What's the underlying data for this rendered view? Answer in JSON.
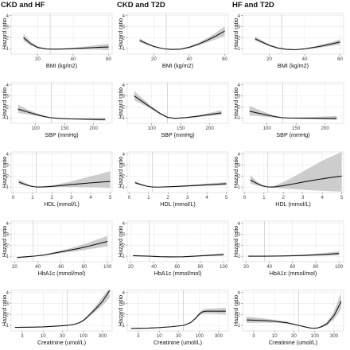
{
  "chart_data": {
    "type": "line",
    "column_titles": [
      "CKD and HF",
      "CKD and T2D",
      "HF and T2D"
    ],
    "ylabel": "Hazard ratio",
    "band_color": "#c4c4c4",
    "line_color": "#111111",
    "rows": [
      {
        "xlabel": "BMI (kg/m2)",
        "xlim": [
          5,
          62
        ],
        "xticks": [
          20,
          40,
          60
        ],
        "xtick_labels": [
          "20",
          "40",
          "60"
        ],
        "log_x": false,
        "ylim": [
          0.5,
          4.2
        ],
        "yticks": [
          1,
          2,
          3,
          4
        ],
        "panels": [
          {
            "ref": 27,
            "x": [
              12,
              16,
              20,
              25,
              30,
              35,
              40,
              45,
              50,
              55,
              60
            ],
            "y": [
              2.0,
              1.45,
              1.1,
              0.97,
              0.95,
              0.97,
              1.0,
              1.04,
              1.08,
              1.12,
              1.15
            ],
            "lower": [
              1.7,
              1.3,
              1.02,
              0.94,
              0.92,
              0.93,
              0.93,
              0.93,
              0.92,
              0.9,
              0.85
            ],
            "upper": [
              2.35,
              1.65,
              1.18,
              1.0,
              0.98,
              1.01,
              1.07,
              1.15,
              1.25,
              1.35,
              1.45
            ]
          },
          {
            "ref": 27,
            "x": [
              12,
              16,
              20,
              25,
              30,
              35,
              40,
              45,
              50,
              55,
              60
            ],
            "y": [
              1.75,
              1.45,
              1.2,
              1.0,
              0.92,
              0.95,
              1.12,
              1.4,
              1.75,
              2.15,
              2.6
            ],
            "lower": [
              1.6,
              1.35,
              1.13,
              0.97,
              0.89,
              0.91,
              1.05,
              1.28,
              1.55,
              1.85,
              2.15
            ],
            "upper": [
              1.92,
              1.56,
              1.27,
              1.03,
              0.95,
              0.99,
              1.2,
              1.53,
              1.95,
              2.45,
              3.05
            ]
          },
          {
            "ref": 27,
            "x": [
              12,
              16,
              20,
              25,
              30,
              35,
              40,
              45,
              50,
              55,
              60
            ],
            "y": [
              1.9,
              1.6,
              1.3,
              1.05,
              0.93,
              0.9,
              0.98,
              1.1,
              1.25,
              1.42,
              1.6
            ],
            "lower": [
              1.7,
              1.47,
              1.22,
              1.0,
              0.9,
              0.87,
              0.93,
              1.02,
              1.12,
              1.24,
              1.35
            ],
            "upper": [
              2.12,
              1.74,
              1.38,
              1.1,
              0.96,
              0.93,
              1.03,
              1.18,
              1.38,
              1.6,
              1.85
            ]
          }
        ]
      },
      {
        "xlabel": "SBP (mmHg)",
        "xlim": [
          58,
          232
        ],
        "xticks": [
          100,
          150,
          200
        ],
        "xtick_labels": [
          "100",
          "150",
          "200"
        ],
        "log_x": false,
        "ylim": [
          0.5,
          4.2
        ],
        "yticks": [
          1,
          2,
          3,
          4
        ],
        "panels": [
          {
            "ref": 127,
            "x": [
              70,
              85,
              100,
              115,
              127,
              140,
              160,
              180,
              200,
              220
            ],
            "y": [
              1.8,
              1.55,
              1.32,
              1.12,
              1.0,
              0.95,
              0.9,
              0.88,
              0.86,
              0.85
            ],
            "lower": [
              1.45,
              1.32,
              1.18,
              1.05,
              0.98,
              0.92,
              0.86,
              0.81,
              0.77,
              0.74
            ],
            "upper": [
              2.2,
              1.8,
              1.47,
              1.19,
              1.02,
              0.98,
              0.95,
              0.95,
              0.96,
              0.98
            ]
          },
          {
            "ref": 127,
            "x": [
              70,
              85,
              100,
              115,
              127,
              140,
              160,
              180,
              200,
              220
            ],
            "y": [
              3.0,
              2.45,
              1.9,
              1.38,
              1.05,
              0.95,
              1.02,
              1.15,
              1.3,
              1.45
            ],
            "lower": [
              2.6,
              2.2,
              1.75,
              1.3,
              1.02,
              0.92,
              0.97,
              1.07,
              1.17,
              1.25
            ],
            "upper": [
              3.45,
              2.72,
              2.06,
              1.47,
              1.08,
              0.98,
              1.07,
              1.23,
              1.45,
              1.7
            ]
          },
          {
            "ref": 127,
            "x": [
              70,
              85,
              100,
              115,
              127,
              140,
              160,
              180,
              200,
              220
            ],
            "y": [
              1.6,
              1.42,
              1.25,
              1.1,
              1.0,
              0.98,
              0.97,
              0.97,
              0.96,
              0.96
            ],
            "lower": [
              1.2,
              1.15,
              1.08,
              1.02,
              0.98,
              0.95,
              0.91,
              0.87,
              0.83,
              0.78
            ],
            "upper": [
              2.1,
              1.75,
              1.44,
              1.18,
              1.02,
              1.01,
              1.04,
              1.08,
              1.12,
              1.17
            ]
          }
        ]
      },
      {
        "xlabel": "HDL (mmol/L)",
        "xlim": [
          -0.1,
          5.1
        ],
        "xticks": [
          0,
          1,
          2,
          3,
          4,
          5
        ],
        "xtick_labels": [
          "0",
          "1",
          "2",
          "3",
          "4",
          "5"
        ],
        "log_x": false,
        "ylim": [
          0.5,
          4.2
        ],
        "yticks": [
          1,
          2,
          3,
          4
        ],
        "panels": [
          {
            "ref": 1.2,
            "x": [
              0.3,
              0.6,
              0.9,
              1.2,
              1.5,
              2.0,
              2.5,
              3.0,
              3.5,
              4.0,
              4.5,
              5.0
            ],
            "y": [
              1.45,
              1.25,
              1.08,
              1.0,
              1.0,
              1.06,
              1.14,
              1.22,
              1.3,
              1.38,
              1.45,
              1.5
            ],
            "lower": [
              1.25,
              1.12,
              1.02,
              0.98,
              0.96,
              0.98,
              0.99,
              0.99,
              0.98,
              0.97,
              0.95,
              0.92
            ],
            "upper": [
              1.7,
              1.4,
              1.15,
              1.02,
              1.05,
              1.15,
              1.32,
              1.52,
              1.75,
              1.98,
              2.2,
              2.45
            ]
          },
          {
            "ref": 1.2,
            "x": [
              0.3,
              0.6,
              0.9,
              1.2,
              1.5,
              2.0,
              2.5,
              3.0,
              3.5,
              4.0,
              4.5,
              5.0
            ],
            "y": [
              1.4,
              1.22,
              1.08,
              1.0,
              0.99,
              1.02,
              1.06,
              1.1,
              1.15,
              1.2,
              1.25,
              1.3
            ],
            "lower": [
              1.28,
              1.15,
              1.04,
              0.98,
              0.97,
              0.99,
              1.01,
              1.04,
              1.07,
              1.1,
              1.13,
              1.15
            ],
            "upper": [
              1.54,
              1.3,
              1.12,
              1.02,
              1.01,
              1.05,
              1.11,
              1.17,
              1.24,
              1.31,
              1.38,
              1.45
            ]
          },
          {
            "ref": 1.2,
            "x": [
              0.3,
              0.6,
              0.9,
              1.2,
              1.5,
              2.0,
              2.5,
              3.0,
              3.5,
              4.0,
              4.5,
              5.0
            ],
            "y": [
              1.65,
              1.35,
              1.12,
              1.0,
              1.0,
              1.12,
              1.28,
              1.45,
              1.6,
              1.75,
              1.88,
              2.0
            ],
            "lower": [
              1.3,
              1.15,
              1.04,
              0.98,
              0.92,
              0.85,
              0.8,
              0.75,
              0.7,
              0.66,
              0.62,
              0.58
            ],
            "upper": [
              2.1,
              1.58,
              1.2,
              1.02,
              1.1,
              1.45,
              1.9,
              2.4,
              2.9,
              3.4,
              3.8,
              4.2
            ]
          }
        ]
      },
      {
        "xlabel": "HbA1c (mmol/mol)",
        "xlim": [
          17,
          104
        ],
        "xticks": [
          20,
          40,
          60,
          80,
          100
        ],
        "xtick_labels": [
          "20",
          "40",
          "60",
          "80",
          "100"
        ],
        "log_x": false,
        "ylim": [
          0.5,
          4.2
        ],
        "yticks": [
          1,
          2,
          3,
          4
        ],
        "panels": [
          {
            "ref": 36,
            "x": [
              22,
              30,
              36,
              45,
              55,
              65,
              75,
              85,
              100
            ],
            "y": [
              0.88,
              0.95,
              1.0,
              1.1,
              1.3,
              1.5,
              1.7,
              1.95,
              2.35
            ],
            "lower": [
              0.8,
              0.9,
              0.98,
              1.05,
              1.2,
              1.35,
              1.48,
              1.65,
              1.9
            ],
            "upper": [
              0.96,
              1.0,
              1.02,
              1.15,
              1.4,
              1.65,
              1.95,
              2.3,
              2.85
            ]
          },
          {
            "ref": 36,
            "x": [
              22,
              30,
              36,
              45,
              55,
              65,
              75,
              85,
              100
            ],
            "y": [
              1.05,
              1.02,
              1.0,
              0.96,
              0.94,
              0.95,
              1.0,
              1.07,
              1.15
            ],
            "lower": [
              0.97,
              0.98,
              0.98,
              0.93,
              0.91,
              0.92,
              0.96,
              1.0,
              1.04
            ],
            "upper": [
              1.13,
              1.06,
              1.02,
              0.99,
              0.97,
              0.98,
              1.05,
              1.14,
              1.27
            ]
          },
          {
            "ref": 36,
            "x": [
              22,
              30,
              36,
              45,
              55,
              65,
              75,
              85,
              100
            ],
            "y": [
              1.0,
              1.0,
              1.0,
              1.01,
              1.03,
              1.06,
              1.1,
              1.15,
              1.25
            ],
            "lower": [
              0.94,
              0.97,
              0.98,
              0.98,
              0.99,
              1.0,
              1.02,
              1.04,
              1.07
            ],
            "upper": [
              1.06,
              1.03,
              1.02,
              1.04,
              1.07,
              1.12,
              1.18,
              1.27,
              1.44
            ]
          }
        ]
      },
      {
        "xlabel": "Creatinine (umol/L)",
        "xlim": [
          1.6,
          520
        ],
        "xticks": [
          3,
          10,
          30,
          100,
          300
        ],
        "xtick_labels": [
          "3",
          "10",
          "30",
          "100",
          "300"
        ],
        "log_x": true,
        "ylim": [
          0.5,
          4.2
        ],
        "yticks": [
          1,
          2,
          3,
          4
        ],
        "panels": [
          {
            "ref": 40,
            "x": [
              2,
              5,
              10,
              20,
              40,
              60,
              80,
              100,
              120,
              150,
              200,
              300,
              400,
              450
            ],
            "y": [
              0.82,
              0.84,
              0.87,
              0.93,
              1.0,
              1.1,
              1.25,
              1.45,
              1.7,
              2.05,
              2.5,
              3.2,
              3.9,
              4.2
            ],
            "lower": [
              0.78,
              0.81,
              0.85,
              0.91,
              0.98,
              1.07,
              1.2,
              1.37,
              1.58,
              1.88,
              2.25,
              2.8,
              3.3,
              3.55
            ],
            "upper": [
              0.86,
              0.87,
              0.9,
              0.95,
              1.02,
              1.13,
              1.3,
              1.53,
              1.82,
              2.22,
              2.75,
              3.6,
              4.2,
              4.2
            ]
          },
          {
            "ref": 40,
            "x": [
              2,
              5,
              10,
              20,
              40,
              60,
              80,
              100,
              120,
              150,
              200,
              300,
              400,
              450
            ],
            "y": [
              0.72,
              0.75,
              0.8,
              0.88,
              1.0,
              1.25,
              1.65,
              2.05,
              2.25,
              2.3,
              2.3,
              2.3,
              2.3,
              2.3
            ],
            "lower": [
              0.68,
              0.72,
              0.78,
              0.86,
              0.98,
              1.2,
              1.55,
              1.9,
              2.05,
              2.08,
              2.06,
              2.03,
              2.0,
              1.98
            ],
            "upper": [
              0.76,
              0.78,
              0.82,
              0.9,
              1.02,
              1.3,
              1.75,
              2.2,
              2.45,
              2.52,
              2.54,
              2.57,
              2.6,
              2.62
            ]
          },
          {
            "ref": 40,
            "x": [
              2,
              5,
              10,
              20,
              40,
              60,
              80,
              100,
              120,
              150,
              200,
              300,
              400,
              450
            ],
            "y": [
              1.5,
              1.45,
              1.38,
              1.25,
              1.0,
              0.85,
              0.76,
              0.75,
              0.78,
              0.9,
              1.15,
              1.9,
              2.8,
              3.2
            ],
            "lower": [
              1.22,
              1.25,
              1.24,
              1.16,
              0.98,
              0.82,
              0.73,
              0.71,
              0.73,
              0.82,
              1.0,
              1.55,
              2.2,
              2.5
            ],
            "upper": [
              1.8,
              1.66,
              1.52,
              1.34,
              1.02,
              0.88,
              0.79,
              0.79,
              0.83,
              0.98,
              1.3,
              2.3,
              3.5,
              4.0
            ]
          }
        ]
      }
    ]
  }
}
